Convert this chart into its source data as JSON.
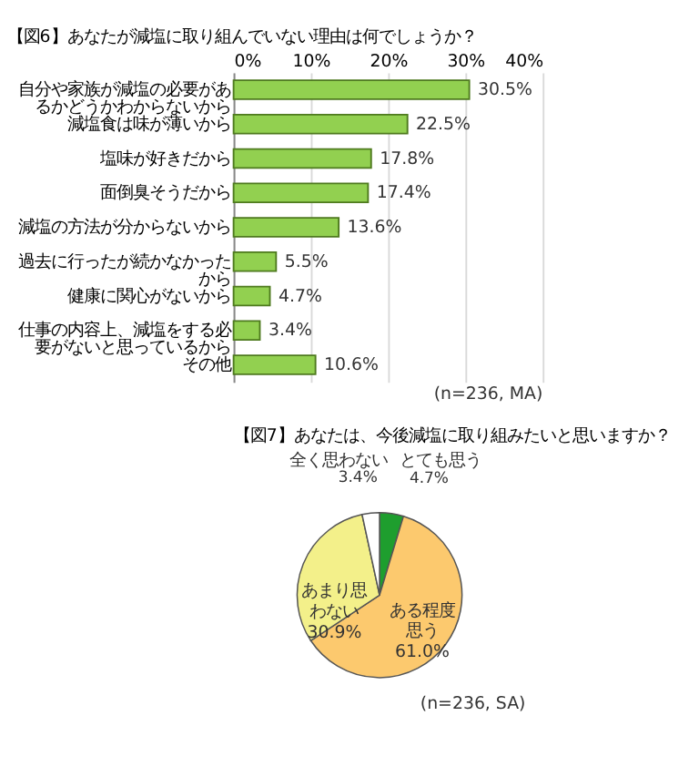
{
  "chart_data": [
    {
      "type": "bar",
      "orientation": "horizontal",
      "title": "【図6】あなたが減塩に取り組んでいない理由は何でしょうか？",
      "categories": [
        "自分や家族が減塩の必要があるかどうかわからないから",
        "減塩食は味が薄いから",
        "塩味が好きだから",
        "面倒臭そうだから",
        "減塩の方法が分からないから",
        "過去に行ったが続かなかったから",
        "健康に関心がないから",
        "仕事の内容上、減塩をする必要がないと思っているから",
        "その他"
      ],
      "values": [
        30.5,
        22.5,
        17.8,
        17.4,
        13.6,
        5.5,
        4.7,
        3.4,
        10.6
      ],
      "color": "#92d050",
      "xlim": [
        0,
        40
      ],
      "xticks": [
        {
          "value": 0,
          "label": "0%"
        },
        {
          "value": 10,
          "label": "10%"
        },
        {
          "value": 20,
          "label": "20%"
        },
        {
          "value": 30,
          "label": "30%"
        },
        {
          "value": 40,
          "label": "40%"
        }
      ],
      "grid": "x",
      "legend": false,
      "value_labels": [
        "30.5%",
        "22.5%",
        "17.8%",
        "17.4%",
        "13.6%",
        "5.5%",
        "4.7%",
        "3.4%",
        "10.6%"
      ],
      "annotations": [
        "(n=236, MA)"
      ]
    },
    {
      "type": "pie",
      "title": "【図7】あなたは、今後減塩に取り組みたいと思いますか？",
      "categories": [
        "とても思う",
        "ある程度思う",
        "あまり思わない",
        "全く思わない"
      ],
      "values": [
        4.7,
        61.0,
        30.9,
        3.4
      ],
      "colors": [
        "#1e9e2e",
        "#fcc96e",
        "#f3f08a",
        "#ffffff"
      ],
      "value_labels": [
        "4.7%",
        "61.0%",
        "30.9%",
        "3.4%"
      ],
      "legend": false,
      "annotations": [
        "(n=236, SA)"
      ]
    }
  ]
}
